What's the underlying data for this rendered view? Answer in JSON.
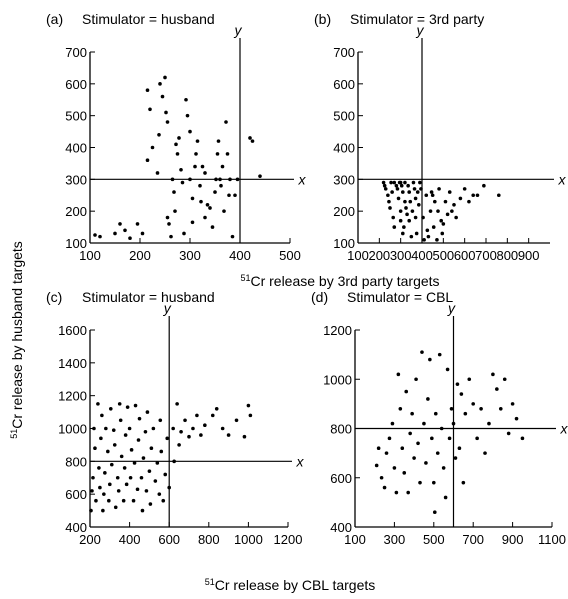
{
  "chart_data": [
    {
      "type": "scatter",
      "panel": "(a)",
      "title": "Stimulator = husband",
      "xlim": [
        100,
        500
      ],
      "ylim": [
        100,
        700
      ],
      "xticks": [
        100,
        200,
        300,
        400,
        500
      ],
      "yticks": [
        100,
        200,
        300,
        400,
        500,
        600,
        700
      ],
      "ref_x": 400,
      "ref_y": 300,
      "ref_x_label": "y",
      "ref_y_label": "x",
      "points": [
        [
          110,
          125
        ],
        [
          120,
          120
        ],
        [
          150,
          130
        ],
        [
          160,
          160
        ],
        [
          170,
          140
        ],
        [
          180,
          115
        ],
        [
          195,
          160
        ],
        [
          205,
          130
        ],
        [
          215,
          580
        ],
        [
          220,
          520
        ],
        [
          215,
          360
        ],
        [
          225,
          400
        ],
        [
          235,
          320
        ],
        [
          238,
          440
        ],
        [
          240,
          600
        ],
        [
          245,
          560
        ],
        [
          250,
          620
        ],
        [
          252,
          510
        ],
        [
          255,
          480
        ],
        [
          255,
          180
        ],
        [
          258,
          160
        ],
        [
          262,
          120
        ],
        [
          265,
          300
        ],
        [
          268,
          260
        ],
        [
          270,
          200
        ],
        [
          272,
          410
        ],
        [
          275,
          380
        ],
        [
          278,
          430
        ],
        [
          282,
          330
        ],
        [
          285,
          290
        ],
        [
          288,
          130
        ],
        [
          292,
          550
        ],
        [
          295,
          500
        ],
        [
          300,
          450
        ],
        [
          300,
          300
        ],
        [
          305,
          240
        ],
        [
          305,
          165
        ],
        [
          310,
          340
        ],
        [
          312,
          380
        ],
        [
          315,
          420
        ],
        [
          320,
          280
        ],
        [
          322,
          230
        ],
        [
          325,
          340
        ],
        [
          330,
          320
        ],
        [
          330,
          180
        ],
        [
          335,
          220
        ],
        [
          340,
          210
        ],
        [
          345,
          150
        ],
        [
          350,
          260
        ],
        [
          352,
          300
        ],
        [
          355,
          380
        ],
        [
          357,
          420
        ],
        [
          360,
          300
        ],
        [
          362,
          280
        ],
        [
          365,
          340
        ],
        [
          368,
          200
        ],
        [
          372,
          480
        ],
        [
          375,
          380
        ],
        [
          378,
          250
        ],
        [
          380,
          300
        ],
        [
          385,
          120
        ],
        [
          390,
          250
        ],
        [
          395,
          300
        ],
        [
          420,
          430
        ],
        [
          425,
          420
        ],
        [
          440,
          310
        ]
      ]
    },
    {
      "type": "scatter",
      "panel": "(b)",
      "title": "Stimulator = 3rd party",
      "xlim": [
        100,
        1000
      ],
      "ylim": [
        100,
        700
      ],
      "xticks": [
        100,
        200,
        300,
        400,
        500,
        600,
        700,
        800,
        900
      ],
      "yticks": [
        100,
        200,
        300,
        400,
        500,
        600,
        700
      ],
      "ref_x": 400,
      "ref_y": 300,
      "ref_x_label": "y",
      "ref_y_label": "x",
      "points": [
        [
          220,
          290
        ],
        [
          225,
          280
        ],
        [
          230,
          270
        ],
        [
          240,
          250
        ],
        [
          245,
          230
        ],
        [
          250,
          210
        ],
        [
          255,
          290
        ],
        [
          260,
          260
        ],
        [
          265,
          180
        ],
        [
          270,
          150
        ],
        [
          270,
          290
        ],
        [
          280,
          280
        ],
        [
          285,
          270
        ],
        [
          290,
          240
        ],
        [
          295,
          290
        ],
        [
          300,
          290
        ],
        [
          300,
          200
        ],
        [
          300,
          170
        ],
        [
          305,
          280
        ],
        [
          310,
          260
        ],
        [
          310,
          130
        ],
        [
          315,
          150
        ],
        [
          320,
          290
        ],
        [
          320,
          230
        ],
        [
          325,
          210
        ],
        [
          330,
          190
        ],
        [
          335,
          280
        ],
        [
          340,
          260
        ],
        [
          340,
          170
        ],
        [
          345,
          230
        ],
        [
          350,
          120
        ],
        [
          355,
          200
        ],
        [
          360,
          290
        ],
        [
          365,
          270
        ],
        [
          370,
          240
        ],
        [
          370,
          180
        ],
        [
          375,
          130
        ],
        [
          380,
          260
        ],
        [
          385,
          220
        ],
        [
          390,
          290
        ],
        [
          395,
          270
        ],
        [
          405,
          180
        ],
        [
          410,
          110
        ],
        [
          420,
          250
        ],
        [
          425,
          140
        ],
        [
          430,
          120
        ],
        [
          440,
          200
        ],
        [
          445,
          260
        ],
        [
          450,
          250
        ],
        [
          455,
          150
        ],
        [
          460,
          230
        ],
        [
          470,
          110
        ],
        [
          475,
          200
        ],
        [
          480,
          270
        ],
        [
          490,
          170
        ],
        [
          495,
          130
        ],
        [
          500,
          160
        ],
        [
          510,
          230
        ],
        [
          520,
          190
        ],
        [
          530,
          260
        ],
        [
          540,
          200
        ],
        [
          550,
          220
        ],
        [
          560,
          180
        ],
        [
          580,
          240
        ],
        [
          600,
          270
        ],
        [
          620,
          230
        ],
        [
          640,
          250
        ],
        [
          660,
          250
        ],
        [
          690,
          280
        ],
        [
          760,
          250
        ]
      ]
    },
    {
      "type": "scatter",
      "panel": "(c)",
      "title": "Stimulator = husband",
      "xlim": [
        200,
        1200
      ],
      "ylim": [
        400,
        1600
      ],
      "xticks": [
        200,
        400,
        600,
        800,
        1000,
        1200
      ],
      "yticks": [
        400,
        600,
        800,
        1000,
        1200,
        1400,
        1600
      ],
      "ref_x": 600,
      "ref_y": 800,
      "ref_x_label": "y",
      "ref_y_label": "x",
      "points": [
        [
          205,
          500
        ],
        [
          210,
          620
        ],
        [
          215,
          700
        ],
        [
          220,
          1000
        ],
        [
          225,
          880
        ],
        [
          230,
          560
        ],
        [
          240,
          1150
        ],
        [
          245,
          760
        ],
        [
          250,
          640
        ],
        [
          255,
          940
        ],
        [
          260,
          1080
        ],
        [
          265,
          500
        ],
        [
          270,
          600
        ],
        [
          275,
          730
        ],
        [
          280,
          1000
        ],
        [
          290,
          860
        ],
        [
          295,
          560
        ],
        [
          300,
          660
        ],
        [
          305,
          1120
        ],
        [
          310,
          780
        ],
        [
          320,
          990
        ],
        [
          325,
          900
        ],
        [
          330,
          520
        ],
        [
          340,
          700
        ],
        [
          345,
          620
        ],
        [
          350,
          1150
        ],
        [
          355,
          1050
        ],
        [
          360,
          830
        ],
        [
          370,
          560
        ],
        [
          375,
          760
        ],
        [
          380,
          960
        ],
        [
          385,
          660
        ],
        [
          390,
          1130
        ],
        [
          400,
          1000
        ],
        [
          405,
          700
        ],
        [
          410,
          870
        ],
        [
          420,
          560
        ],
        [
          425,
          790
        ],
        [
          430,
          1140
        ],
        [
          440,
          630
        ],
        [
          445,
          930
        ],
        [
          450,
          1060
        ],
        [
          460,
          700
        ],
        [
          465,
          500
        ],
        [
          470,
          820
        ],
        [
          480,
          980
        ],
        [
          485,
          620
        ],
        [
          490,
          1100
        ],
        [
          500,
          740
        ],
        [
          505,
          540
        ],
        [
          510,
          880
        ],
        [
          520,
          1000
        ],
        [
          530,
          680
        ],
        [
          540,
          790
        ],
        [
          550,
          600
        ],
        [
          555,
          1050
        ],
        [
          560,
          860
        ],
        [
          570,
          560
        ],
        [
          580,
          720
        ],
        [
          590,
          940
        ],
        [
          600,
          640
        ],
        [
          620,
          1000
        ],
        [
          625,
          800
        ],
        [
          640,
          1150
        ],
        [
          650,
          900
        ],
        [
          660,
          980
        ],
        [
          680,
          1050
        ],
        [
          700,
          950
        ],
        [
          720,
          1000
        ],
        [
          740,
          1080
        ],
        [
          760,
          960
        ],
        [
          780,
          1020
        ],
        [
          820,
          1080
        ],
        [
          840,
          1120
        ],
        [
          870,
          1000
        ],
        [
          900,
          960
        ],
        [
          940,
          1050
        ],
        [
          980,
          950
        ],
        [
          1000,
          1140
        ],
        [
          1010,
          1080
        ]
      ]
    },
    {
      "type": "scatter",
      "panel": "(d)",
      "title": "Stimulator = CBL",
      "xlim": [
        100,
        1100
      ],
      "ylim": [
        400,
        1200
      ],
      "xticks": [
        100,
        300,
        500,
        700,
        900,
        1100
      ],
      "yticks": [
        400,
        600,
        800,
        1000,
        1200
      ],
      "ref_x": 600,
      "ref_y": 800,
      "ref_x_label": "y",
      "ref_y_label": "x",
      "points": [
        [
          210,
          650
        ],
        [
          220,
          720
        ],
        [
          235,
          600
        ],
        [
          250,
          560
        ],
        [
          260,
          700
        ],
        [
          275,
          760
        ],
        [
          290,
          820
        ],
        [
          300,
          640
        ],
        [
          310,
          540
        ],
        [
          320,
          1020
        ],
        [
          330,
          880
        ],
        [
          340,
          720
        ],
        [
          350,
          620
        ],
        [
          360,
          950
        ],
        [
          370,
          540
        ],
        [
          380,
          780
        ],
        [
          390,
          860
        ],
        [
          400,
          680
        ],
        [
          410,
          1000
        ],
        [
          420,
          740
        ],
        [
          430,
          580
        ],
        [
          440,
          1110
        ],
        [
          450,
          820
        ],
        [
          460,
          660
        ],
        [
          470,
          920
        ],
        [
          480,
          1080
        ],
        [
          490,
          760
        ],
        [
          500,
          580
        ],
        [
          505,
          460
        ],
        [
          510,
          860
        ],
        [
          520,
          700
        ],
        [
          530,
          1100
        ],
        [
          540,
          800
        ],
        [
          550,
          640
        ],
        [
          560,
          520
        ],
        [
          570,
          1040
        ],
        [
          580,
          760
        ],
        [
          590,
          880
        ],
        [
          600,
          820
        ],
        [
          610,
          680
        ],
        [
          620,
          980
        ],
        [
          630,
          720
        ],
        [
          640,
          940
        ],
        [
          650,
          580
        ],
        [
          660,
          860
        ],
        [
          680,
          1000
        ],
        [
          700,
          900
        ],
        [
          720,
          760
        ],
        [
          740,
          880
        ],
        [
          760,
          700
        ],
        [
          780,
          820
        ],
        [
          800,
          1020
        ],
        [
          820,
          960
        ],
        [
          840,
          880
        ],
        [
          860,
          1000
        ],
        [
          880,
          780
        ],
        [
          900,
          900
        ],
        [
          920,
          840
        ],
        [
          950,
          760
        ]
      ]
    }
  ],
  "axes": {
    "ylabel_prefix": "51",
    "ylabel_main": "Cr release by husband targets",
    "xlabel_top_prefix": "51",
    "xlabel_top_main": "Cr release by 3rd party targets",
    "xlabel_bottom_prefix": "51",
    "xlabel_bottom_main": "Cr release by CBL targets"
  }
}
